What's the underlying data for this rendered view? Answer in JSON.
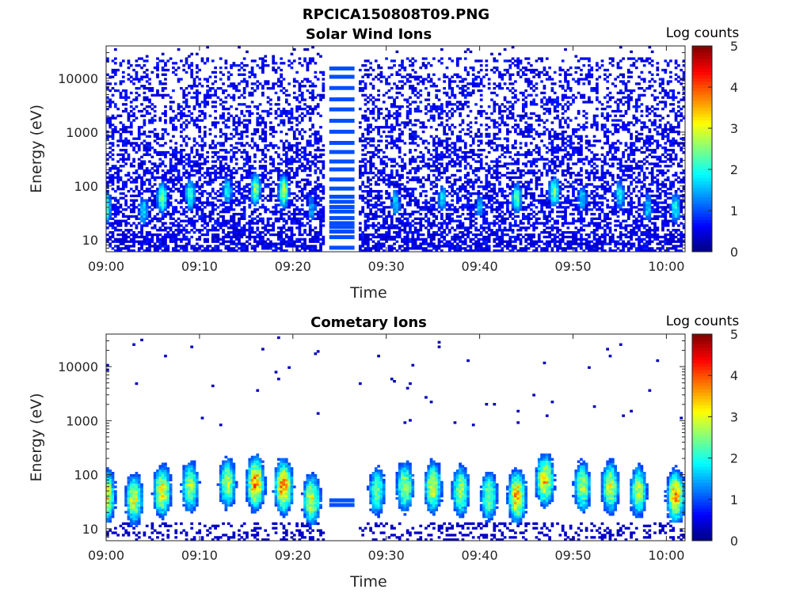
{
  "figure": {
    "title": "RPCICA150808T09.PNG"
  },
  "chart_data": [
    {
      "type": "heatmap",
      "title": "Solar Wind Ions",
      "xlabel": "Time",
      "ylabel": "Energy (eV)",
      "y_scale": "log",
      "xlim": [
        "09:00",
        "10:02"
      ],
      "ylim": [
        6,
        40000
      ],
      "x_ticks": [
        "09:00",
        "09:10",
        "09:20",
        "09:30",
        "09:40",
        "09:50",
        "10:00"
      ],
      "y_ticks": [
        "10",
        "100",
        "1000",
        "10000"
      ],
      "colorbar": {
        "label": "Log counts",
        "min": 0,
        "max": 5,
        "ticks": [
          "0",
          "1",
          "2",
          "3",
          "4",
          "5"
        ],
        "colormap": "jet"
      },
      "data_gap": [
        "09:23.5",
        "09:27"
      ],
      "gap_bands_eV": [
        7,
        11,
        14,
        17,
        20,
        25,
        33,
        40,
        50,
        62,
        88,
        130,
        200,
        280,
        420,
        620,
        1000,
        1600,
        2600,
        4000,
        6500,
        10500,
        15000
      ],
      "features": [
        {
          "time": "09:00",
          "peak_eV": 40,
          "log_counts": 2.7
        },
        {
          "time": "09:04",
          "peak_eV": 35,
          "log_counts": 2.0
        },
        {
          "time": "09:06",
          "peak_eV": 60,
          "log_counts": 2.6
        },
        {
          "time": "09:09",
          "peak_eV": 70,
          "log_counts": 2.4
        },
        {
          "time": "09:13",
          "peak_eV": 80,
          "log_counts": 2.0
        },
        {
          "time": "09:16",
          "peak_eV": 90,
          "log_counts": 2.8
        },
        {
          "time": "09:19",
          "peak_eV": 80,
          "log_counts": 3.0
        },
        {
          "time": "09:22",
          "peak_eV": 40,
          "log_counts": 1.6
        },
        {
          "time": "09:31",
          "peak_eV": 50,
          "log_counts": 1.8
        },
        {
          "time": "09:36",
          "peak_eV": 60,
          "log_counts": 1.8
        },
        {
          "time": "09:40",
          "peak_eV": 40,
          "log_counts": 1.6
        },
        {
          "time": "09:44",
          "peak_eV": 60,
          "log_counts": 2.4
        },
        {
          "time": "09:48",
          "peak_eV": 80,
          "log_counts": 2.6
        },
        {
          "time": "09:51",
          "peak_eV": 60,
          "log_counts": 1.8
        },
        {
          "time": "09:55",
          "peak_eV": 70,
          "log_counts": 2.0
        },
        {
          "time": "09:58",
          "peak_eV": 40,
          "log_counts": 1.8
        },
        {
          "time": "10:01",
          "peak_eV": 40,
          "log_counts": 2.2
        }
      ]
    },
    {
      "type": "heatmap",
      "title": "Cometary Ions",
      "xlabel": "Time",
      "ylabel": "Energy (eV)",
      "y_scale": "log",
      "xlim": [
        "09:00",
        "10:02"
      ],
      "ylim": [
        6,
        40000
      ],
      "x_ticks": [
        "09:00",
        "09:10",
        "09:20",
        "09:30",
        "09:40",
        "09:50",
        "10:00"
      ],
      "y_ticks": [
        "10",
        "100",
        "1000",
        "10000"
      ],
      "colorbar": {
        "label": "Log counts",
        "min": 0,
        "max": 5,
        "ticks": [
          "0",
          "1",
          "2",
          "3",
          "4",
          "5"
        ],
        "colormap": "jet"
      },
      "data_gap": [
        "09:23.5",
        "09:27"
      ],
      "gap_bands_eV": [
        27,
        33
      ],
      "features": [
        {
          "time": "09:00",
          "peak_eV": 40,
          "log_counts": 3.6
        },
        {
          "time": "09:03",
          "peak_eV": 35,
          "log_counts": 3.2
        },
        {
          "time": "09:06",
          "peak_eV": 50,
          "log_counts": 3.4
        },
        {
          "time": "09:09",
          "peak_eV": 60,
          "log_counts": 3.0
        },
        {
          "time": "09:13",
          "peak_eV": 70,
          "log_counts": 3.0
        },
        {
          "time": "09:16",
          "peak_eV": 70,
          "log_counts": 4.0
        },
        {
          "time": "09:19",
          "peak_eV": 60,
          "log_counts": 4.0
        },
        {
          "time": "09:22",
          "peak_eV": 35,
          "log_counts": 3.2
        },
        {
          "time": "09:29",
          "peak_eV": 50,
          "log_counts": 2.6
        },
        {
          "time": "09:32",
          "peak_eV": 60,
          "log_counts": 3.0
        },
        {
          "time": "09:35",
          "peak_eV": 60,
          "log_counts": 3.2
        },
        {
          "time": "09:38",
          "peak_eV": 50,
          "log_counts": 3.0
        },
        {
          "time": "09:41",
          "peak_eV": 40,
          "log_counts": 2.8
        },
        {
          "time": "09:44",
          "peak_eV": 40,
          "log_counts": 3.8
        },
        {
          "time": "09:47",
          "peak_eV": 80,
          "log_counts": 3.6
        },
        {
          "time": "09:51",
          "peak_eV": 60,
          "log_counts": 3.0
        },
        {
          "time": "09:54",
          "peak_eV": 60,
          "log_counts": 3.2
        },
        {
          "time": "09:57",
          "peak_eV": 50,
          "log_counts": 3.0
        },
        {
          "time": "10:01",
          "peak_eV": 40,
          "log_counts": 3.8
        }
      ]
    }
  ]
}
